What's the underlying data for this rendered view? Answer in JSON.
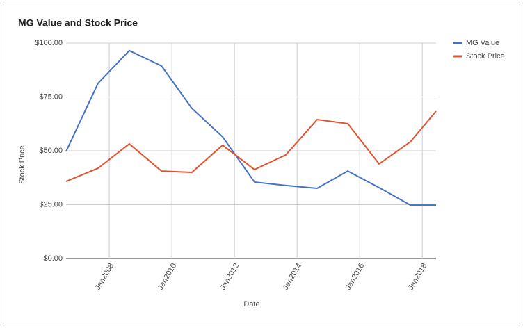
{
  "chart_data": {
    "type": "line",
    "title": "MG Value and Stock Price",
    "x_label": "Date",
    "y_label": "Stock Price",
    "x": [
      2006.62,
      2007.64,
      2008.64,
      2009.67,
      2010.64,
      2011.62,
      2012.64,
      2013.64,
      2014.64,
      2015.62,
      2016.62,
      2017.62,
      2018.44
    ],
    "series": [
      {
        "name": "MG Value",
        "color": "#4472c4",
        "values": [
          49.7,
          81.3,
          96.5,
          89.4,
          69.7,
          56.5,
          35.5,
          33.9,
          32.6,
          40.6,
          32.9,
          24.8,
          24.8
        ]
      },
      {
        "name": "Stock Price",
        "color": "#e0522f",
        "values": [
          35.8,
          41.9,
          53.2,
          40.6,
          40.0,
          52.6,
          41.3,
          48.1,
          64.5,
          62.6,
          43.9,
          54.2,
          68.4
        ]
      }
    ],
    "xlim": [
      2006.62,
      2018.44
    ],
    "xticks": [
      {
        "value": 2008,
        "label": "Jan2008"
      },
      {
        "value": 2010,
        "label": "Jan2010"
      },
      {
        "value": 2012,
        "label": "Jan2012"
      },
      {
        "value": 2014,
        "label": "Jan2014"
      },
      {
        "value": 2016,
        "label": "Jan2016"
      },
      {
        "value": 2018,
        "label": "Jan2018"
      }
    ],
    "ylim": [
      0,
      100
    ],
    "yticks": [
      {
        "value": 0,
        "label": "$0.00"
      },
      {
        "value": 25,
        "label": "$25.00"
      },
      {
        "value": 50,
        "label": "$50.00"
      },
      {
        "value": 75,
        "label": "$75.00"
      },
      {
        "value": 100,
        "label": "$100.00"
      }
    ],
    "grid": true,
    "legend": "right"
  }
}
